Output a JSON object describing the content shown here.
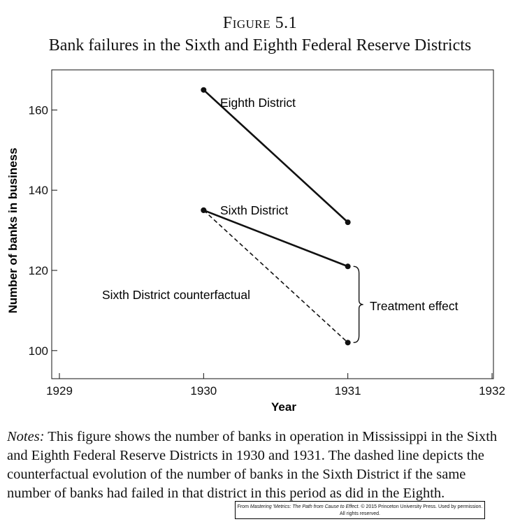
{
  "figure": {
    "label": "Figure 5.1",
    "title": "Bank failures in the Sixth and Eighth Federal Reserve Districts"
  },
  "chart_data": {
    "type": "line",
    "xlabel": "Year",
    "ylabel": "Number of banks in business",
    "xlim": [
      1929,
      1932
    ],
    "ylim": [
      93,
      170
    ],
    "xticks": [
      "1929",
      "1930",
      "1931",
      "1932"
    ],
    "yticks": [
      "100",
      "120",
      "140",
      "160"
    ],
    "grid": false,
    "series": [
      {
        "name": "Eighth District",
        "x": [
          1930,
          1931
        ],
        "y": [
          165,
          132
        ],
        "style": "solid"
      },
      {
        "name": "Sixth District",
        "x": [
          1930,
          1931
        ],
        "y": [
          135,
          121
        ],
        "style": "solid"
      },
      {
        "name": "Sixth District counterfactual",
        "x": [
          1930,
          1931
        ],
        "y": [
          135,
          102
        ],
        "style": "dashed"
      }
    ],
    "annotation": {
      "text": "Treatment effect",
      "x": 1931,
      "y_range": [
        102,
        121
      ]
    }
  },
  "notes": {
    "label": "Notes:",
    "text": "This figure shows the number of banks in operation in Mississippi in the Sixth and Eighth Federal Reserve Districts in 1930 and 1931. The dashed line depicts the counterfactual evolution of the number of banks in the Sixth District if the same number of banks had failed in that district in this period as did in the Eighth."
  },
  "credit": {
    "prefix": "From",
    "book": "Mastering 'Metrics: The Path from Cause to Effect.",
    "rest": "© 2015 Princeton University Press. Used by permission.",
    "line2": "All rights reserved."
  }
}
